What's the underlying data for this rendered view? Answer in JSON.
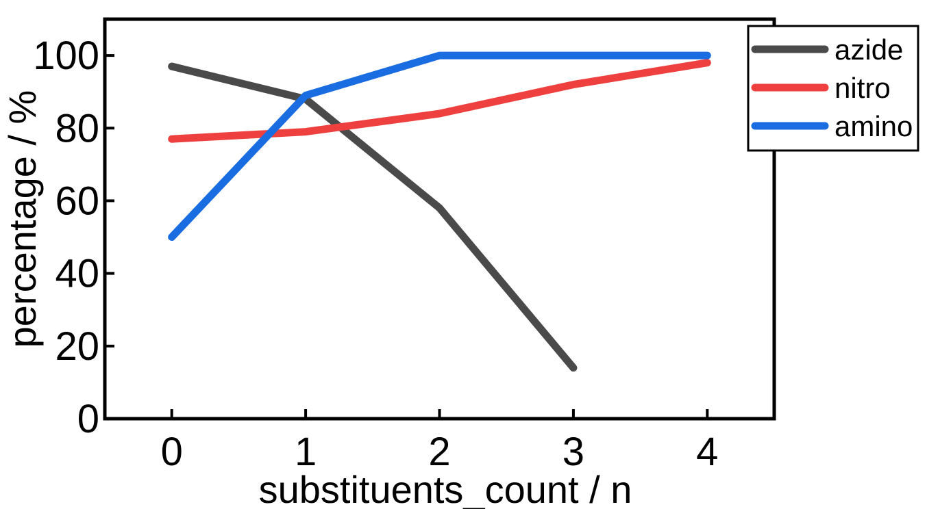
{
  "chart_data": {
    "type": "line",
    "xlabel": "substituents_count / n",
    "ylabel": "percentage / %",
    "x": [
      0,
      1,
      2,
      3,
      4
    ],
    "xticks": [
      "0",
      "1",
      "2",
      "3",
      "4"
    ],
    "yticks": [
      "0",
      "20",
      "40",
      "60",
      "80",
      "100"
    ],
    "xlim": [
      -0.5,
      4.5
    ],
    "ylim": [
      0,
      110
    ],
    "grid": false,
    "legend_position": "top-right",
    "series": [
      {
        "name": "azide",
        "color": "#4a4a4a",
        "x": [
          0,
          1,
          2,
          3
        ],
        "values": [
          97,
          88,
          58,
          14
        ]
      },
      {
        "name": "nitro",
        "color": "#ef4040",
        "x": [
          0,
          1,
          2,
          3,
          4
        ],
        "values": [
          77,
          79,
          84,
          92,
          98
        ]
      },
      {
        "name": "amino",
        "color": "#1a6de0",
        "x": [
          0,
          1,
          2,
          3,
          4
        ],
        "values": [
          50,
          89,
          100,
          100,
          100
        ]
      }
    ]
  }
}
